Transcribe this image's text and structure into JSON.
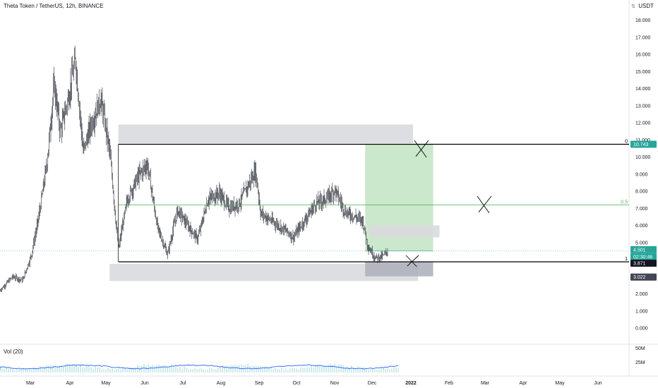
{
  "header": {
    "title": "Theta Token / TetherUS, 12h, BINANCE",
    "currency": "USDT",
    "settings_glyph": "⇅"
  },
  "price_axis": {
    "ticks": [
      "18.000",
      "17.000",
      "16.000",
      "15.000",
      "14.000",
      "13.000",
      "12.000",
      "11.000",
      "10.000",
      "9.000",
      "8.000",
      "7.000",
      "6.000",
      "5.000",
      "4.000",
      "3.000",
      "2.000",
      "1.000",
      "0.000"
    ],
    "tick_values": [
      18,
      17,
      16,
      15,
      14,
      13,
      12,
      11,
      10,
      9,
      8,
      7,
      6,
      5,
      4,
      3,
      2,
      1,
      0
    ],
    "tags": [
      {
        "text": "10.743",
        "value": 10.743,
        "color": "#26a69a"
      },
      {
        "text": "4.501",
        "value": 4.501,
        "color": "#26a69a"
      },
      {
        "text": "02:30:46",
        "value": 4.501,
        "color": "#26a69a"
      },
      {
        "text": "3.871",
        "value": 3.871,
        "color": "#131722"
      },
      {
        "text": "3.022",
        "value": 3.022,
        "color": "#434651"
      }
    ]
  },
  "volume_axis": {
    "ticks": [
      "50M",
      "25M"
    ]
  },
  "time_axis": {
    "labels": [
      "Mar",
      "Apr",
      "May",
      "Jun",
      "Jul",
      "Aug",
      "Sep",
      "Oct",
      "Nov",
      "Dec",
      "2022",
      "Feb",
      "Mar",
      "Apr",
      "May",
      "Jun"
    ],
    "bold": [
      "2022"
    ]
  },
  "fib": {
    "levels": [
      {
        "label": "0",
        "value": 10.743,
        "color": "#000000"
      },
      {
        "label": "0.5",
        "value": 7.2,
        "color": "#4caf50"
      },
      {
        "label": "1",
        "value": 3.871,
        "color": "#000000"
      }
    ]
  },
  "volume": {
    "label": "Vol (20)"
  },
  "colors": {
    "candles": "#131722",
    "long_target_zone": "#c8e6c9",
    "long_stop_zone": "#b0b3bd",
    "supply_zone": "#d9dadf",
    "volume_ma": "#2962ff",
    "fib_mid": "#4caf50"
  },
  "chart_data": {
    "type": "candlestick",
    "symbol": "Theta Token / TetherUS",
    "interval": "12h",
    "exchange": "BINANCE",
    "y_axis": {
      "min": 0,
      "max": 18.5,
      "unit": "USDT"
    },
    "x_axis_range": [
      "2021-02-15",
      "2022-06-30"
    ],
    "price_path": [
      {
        "x": "2021-02-15",
        "y": 2.2
      },
      {
        "x": "2021-02-25",
        "y": 3.0
      },
      {
        "x": "2021-03-05",
        "y": 2.8
      },
      {
        "x": "2021-03-12",
        "y": 4.3
      },
      {
        "x": "2021-03-18",
        "y": 6.6
      },
      {
        "x": "2021-03-24",
        "y": 9.5
      },
      {
        "x": "2021-03-30",
        "y": 14.2
      },
      {
        "x": "2021-04-04",
        "y": 11.5
      },
      {
        "x": "2021-04-10",
        "y": 13.4
      },
      {
        "x": "2021-04-16",
        "y": 15.7
      },
      {
        "x": "2021-04-22",
        "y": 10.3
      },
      {
        "x": "2021-04-28",
        "y": 11.8
      },
      {
        "x": "2021-05-06",
        "y": 13.4
      },
      {
        "x": "2021-05-13",
        "y": 10.4
      },
      {
        "x": "2021-05-20",
        "y": 4.6
      },
      {
        "x": "2021-05-27",
        "y": 7.5
      },
      {
        "x": "2021-06-05",
        "y": 8.9
      },
      {
        "x": "2021-06-12",
        "y": 9.6
      },
      {
        "x": "2021-06-20",
        "y": 5.9
      },
      {
        "x": "2021-06-28",
        "y": 4.3
      },
      {
        "x": "2021-07-06",
        "y": 6.9
      },
      {
        "x": "2021-07-14",
        "y": 6.0
      },
      {
        "x": "2021-07-22",
        "y": 5.2
      },
      {
        "x": "2021-07-30",
        "y": 7.5
      },
      {
        "x": "2021-08-08",
        "y": 7.9
      },
      {
        "x": "2021-08-16",
        "y": 7.0
      },
      {
        "x": "2021-08-24",
        "y": 7.3
      },
      {
        "x": "2021-09-06",
        "y": 9.2
      },
      {
        "x": "2021-09-10",
        "y": 6.7
      },
      {
        "x": "2021-09-20",
        "y": 6.2
      },
      {
        "x": "2021-09-30",
        "y": 5.7
      },
      {
        "x": "2021-10-06",
        "y": 5.3
      },
      {
        "x": "2021-10-14",
        "y": 6.2
      },
      {
        "x": "2021-10-24",
        "y": 7.3
      },
      {
        "x": "2021-11-02",
        "y": 7.6
      },
      {
        "x": "2021-11-08",
        "y": 8.1
      },
      {
        "x": "2021-11-16",
        "y": 6.8
      },
      {
        "x": "2021-11-24",
        "y": 6.5
      },
      {
        "x": "2021-11-30",
        "y": 6.3
      },
      {
        "x": "2021-12-04",
        "y": 4.8
      },
      {
        "x": "2021-12-10",
        "y": 4.1
      },
      {
        "x": "2021-12-16",
        "y": 4.2
      },
      {
        "x": "2021-12-20",
        "y": 4.5
      }
    ],
    "fib_levels": [
      {
        "ratio": "0",
        "value": 10.743
      },
      {
        "ratio": "0.5",
        "value": 7.2
      },
      {
        "ratio": "1",
        "value": 3.871
      }
    ],
    "zones": [
      {
        "kind": "supply",
        "from": "2021-05-20",
        "to": "2022-01-09",
        "low": 10.8,
        "high": 11.9
      },
      {
        "kind": "demand",
        "from": "2021-05-13",
        "to": "2022-01-13",
        "low": 2.75,
        "high": 3.75
      },
      {
        "kind": "long_target",
        "from": "2021-12-02",
        "to": "2022-01-25",
        "low": 4.501,
        "high": 10.743
      },
      {
        "kind": "long_stop",
        "from": "2021-12-02",
        "to": "2022-01-25",
        "low": 3.022,
        "high": 3.871
      },
      {
        "kind": "resistance",
        "from": "2021-12-06",
        "to": "2022-01-30",
        "low": 5.3,
        "high": 6.0
      }
    ],
    "volume_ticks": [
      "50M",
      "25M"
    ],
    "x_tick_labels": [
      "Mar",
      "Apr",
      "May",
      "Jun",
      "Jul",
      "Aug",
      "Sep",
      "Oct",
      "Nov",
      "Dec",
      "2022",
      "Feb",
      "Mar",
      "Apr",
      "May",
      "Jun"
    ],
    "last_price": 4.501,
    "countdown": "02:30:46"
  }
}
